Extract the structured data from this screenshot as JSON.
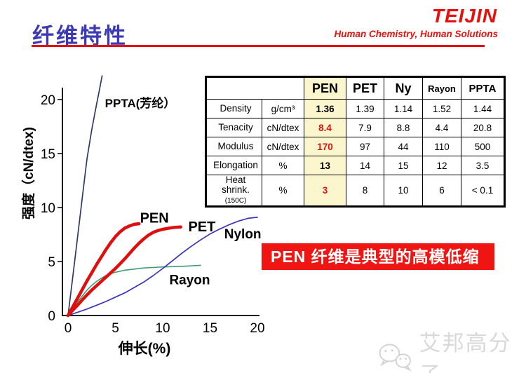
{
  "header": {
    "title": "纤维特性",
    "logo_text": "TEIJIN",
    "tagline": "Human Chemistry, Human Solutions"
  },
  "banner": {
    "text": "PEN 纤维是典型的高模低缩"
  },
  "watermark": {
    "icon": "wechat-icon",
    "text": "艾邦高分子"
  },
  "colors": {
    "accent_red": "#e8100c",
    "title_blue": "#3b39b4",
    "banner_red": "#ee1512",
    "banner_text": "#ffffff",
    "pen_col_bg": "#fbf6cd",
    "table_red": "#dd1111",
    "watermark_gray": "#d9d9d9"
  },
  "table": {
    "header_cols": [
      {
        "label": "PEN",
        "size": "lg",
        "highlight": true
      },
      {
        "label": "PET",
        "size": "lg"
      },
      {
        "label": "Ny",
        "size": "lg"
      },
      {
        "label": "Rayon",
        "size": "sm"
      },
      {
        "label": "PPTA",
        "size": "md"
      }
    ],
    "rows": [
      {
        "label": "Density",
        "unit": "g/cm³",
        "pen": "1.36",
        "pen_style": "bold",
        "others": [
          "1.39",
          "1.14",
          "1.52",
          "1.44"
        ]
      },
      {
        "label": "Tenacity",
        "unit": "cN/dtex",
        "pen": "8.4",
        "pen_style": "red",
        "others": [
          "7.9",
          "8.8",
          "4.4",
          "20.8"
        ]
      },
      {
        "label": "Modulus",
        "unit": "cN/dtex",
        "pen": "170",
        "pen_style": "red",
        "others": [
          "97",
          "44",
          "110",
          "500"
        ]
      },
      {
        "label": "Elongation",
        "unit": "%",
        "pen": "13",
        "pen_style": "bold",
        "others": [
          "14",
          "15",
          "12",
          "3.5"
        ]
      },
      {
        "label": "Heat shrink.",
        "label_small": "(150C)",
        "unit": "%",
        "pen": "3",
        "pen_style": "red",
        "others": [
          "8",
          "10",
          "6",
          "< 0.1"
        ]
      }
    ]
  },
  "chart_data": {
    "type": "line",
    "title": "",
    "xlabel": "伸长(%)",
    "ylabel": "强度（cN/dtex)",
    "xlim": [
      0,
      20
    ],
    "ylim": [
      0,
      21.5
    ],
    "xticks": [
      0,
      5,
      10,
      15,
      20
    ],
    "yticks": [
      0,
      5,
      10,
      15,
      20
    ],
    "grid": false,
    "legend_position": "inline-labels",
    "series": [
      {
        "name": "PPTA",
        "label": "PPTA(芳纶）",
        "color": "#2e3a68",
        "width": 1.7,
        "label_color": "#111111",
        "label_size": 17,
        "label_xy": [
          3.9,
          19.3
        ],
        "points": [
          [
            0,
            0
          ],
          [
            0.5,
            3.6
          ],
          [
            1,
            7.2
          ],
          [
            1.5,
            10.9
          ],
          [
            2,
            14.5
          ],
          [
            2.5,
            17.2
          ],
          [
            3,
            19.5
          ],
          [
            3.3,
            20.8
          ],
          [
            3.6,
            22.2
          ]
        ]
      },
      {
        "name": "Rayon",
        "label": "Rayon",
        "color": "#3f9c78",
        "width": 1.6,
        "label_color": "#3f9c78",
        "label_size": 19,
        "label_xy": [
          10.7,
          2.9
        ],
        "points": [
          [
            0,
            0
          ],
          [
            0.5,
            0.65
          ],
          [
            1,
            1.25
          ],
          [
            1.5,
            1.8
          ],
          [
            2,
            2.35
          ],
          [
            2.5,
            2.8
          ],
          [
            3,
            3.15
          ],
          [
            3.5,
            3.45
          ],
          [
            4,
            3.7
          ],
          [
            4.5,
            3.88
          ],
          [
            5,
            4.0
          ],
          [
            5.5,
            4.1
          ],
          [
            6,
            4.2
          ],
          [
            7,
            4.3
          ],
          [
            8,
            4.4
          ],
          [
            9,
            4.45
          ],
          [
            10,
            4.5
          ],
          [
            12,
            4.55
          ],
          [
            14,
            4.65
          ]
        ]
      },
      {
        "name": "Nylon",
        "label": "Nylon",
        "color": "#3a35b8",
        "width": 1.7,
        "label_color": "#3a35b8",
        "label_size": 19,
        "label_xy": [
          16.5,
          7.15
        ],
        "points": [
          [
            0,
            0
          ],
          [
            1,
            0.3
          ],
          [
            2,
            0.6
          ],
          [
            3,
            0.95
          ],
          [
            4,
            1.3
          ],
          [
            5,
            1.7
          ],
          [
            6,
            2.1
          ],
          [
            7,
            2.6
          ],
          [
            8,
            3.1
          ],
          [
            9,
            3.7
          ],
          [
            10,
            4.35
          ],
          [
            11,
            5.05
          ],
          [
            12,
            5.75
          ],
          [
            13,
            6.4
          ],
          [
            14,
            7.0
          ],
          [
            15,
            7.55
          ],
          [
            16,
            8.0
          ],
          [
            17,
            8.4
          ],
          [
            18,
            8.75
          ],
          [
            19,
            9.0
          ],
          [
            20,
            9.1
          ]
        ]
      },
      {
        "name": "PET",
        "label": "PET",
        "color": "#dd0f0f",
        "width": 4.5,
        "label_color": "#dd0f0f",
        "label_size": 20,
        "label_xy": [
          12.7,
          7.8
        ],
        "points": [
          [
            0,
            0
          ],
          [
            0.5,
            0.5
          ],
          [
            1,
            0.95
          ],
          [
            1.5,
            1.45
          ],
          [
            2,
            1.9
          ],
          [
            2.5,
            2.35
          ],
          [
            3,
            2.75
          ],
          [
            3.5,
            3.15
          ],
          [
            4,
            3.55
          ],
          [
            4.5,
            3.95
          ],
          [
            5,
            4.35
          ],
          [
            5.5,
            4.8
          ],
          [
            6,
            5.25
          ],
          [
            6.5,
            5.75
          ],
          [
            7,
            6.25
          ],
          [
            7.5,
            6.7
          ],
          [
            8,
            7.1
          ],
          [
            8.5,
            7.45
          ],
          [
            9,
            7.7
          ],
          [
            9.5,
            7.87
          ],
          [
            10,
            7.98
          ],
          [
            10.7,
            8.1
          ],
          [
            11.3,
            8.17
          ],
          [
            11.9,
            8.2
          ]
        ]
      },
      {
        "name": "PEN",
        "label": "PEN",
        "color": "#dd0f0f",
        "width": 4.5,
        "label_color": "#dd0f0f",
        "label_size": 20,
        "label_xy": [
          7.6,
          8.6
        ],
        "points": [
          [
            0,
            0
          ],
          [
            0.5,
            0.8
          ],
          [
            1,
            1.6
          ],
          [
            1.5,
            2.4
          ],
          [
            2,
            3.2
          ],
          [
            2.5,
            3.95
          ],
          [
            3,
            4.7
          ],
          [
            3.5,
            5.4
          ],
          [
            4,
            6.1
          ],
          [
            4.5,
            6.75
          ],
          [
            5,
            7.3
          ],
          [
            5.5,
            7.75
          ],
          [
            6,
            8.1
          ],
          [
            6.5,
            8.3
          ],
          [
            7,
            8.45
          ],
          [
            7.5,
            8.5
          ]
        ]
      }
    ]
  }
}
